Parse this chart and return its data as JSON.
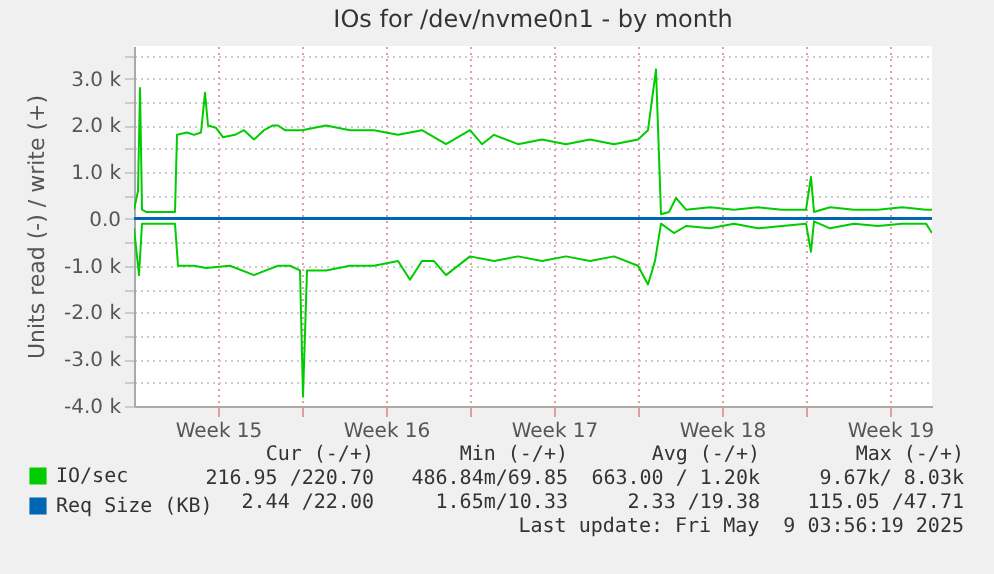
{
  "chart_data": {
    "type": "line",
    "title": "IOs for /dev/nvme0n1 - by month",
    "ylabel": "Units read (-) / write (+)",
    "xlim": [
      "2025-04-07T00:00",
      "2025-05-10T06:00"
    ],
    "xticks": [
      {
        "value": "2025-04-10T12:00",
        "label": "Week 15"
      },
      {
        "value": "2025-04-14T00:00",
        "label": null
      },
      {
        "value": "2025-04-17T12:00",
        "label": "Week 16"
      },
      {
        "value": "2025-04-21T00:00",
        "label": null
      },
      {
        "value": "2025-04-24T12:00",
        "label": "Week 17"
      },
      {
        "value": "2025-04-28T00:00",
        "label": null
      },
      {
        "value": "2025-05-01T12:00",
        "label": "Week 18"
      },
      {
        "value": "2025-05-05T00:00",
        "label": null
      },
      {
        "value": "2025-05-08T12:00",
        "label": "Week 19"
      }
    ],
    "ylim": [
      -4000,
      3700
    ],
    "yticks": [
      {
        "value": -4000,
        "label": "-4.0 k"
      },
      {
        "value": -3500,
        "label": null
      },
      {
        "value": -3000,
        "label": "-3.0 k"
      },
      {
        "value": -2500,
        "label": null
      },
      {
        "value": -2000,
        "label": "-2.0 k"
      },
      {
        "value": -1500,
        "label": null
      },
      {
        "value": -1000,
        "label": "-1.0 k"
      },
      {
        "value": -500,
        "label": null
      },
      {
        "value": 0,
        "label": "0.0"
      },
      {
        "value": 500,
        "label": null
      },
      {
        "value": 1000,
        "label": "1.0 k"
      },
      {
        "value": 1500,
        "label": null
      },
      {
        "value": 2000,
        "label": "2.0 k"
      },
      {
        "value": 2500,
        "label": null
      },
      {
        "value": 3000,
        "label": "3.0 k"
      },
      {
        "value": 3500,
        "label": null
      }
    ],
    "grid": true,
    "legend": "bottom left",
    "series": [
      {
        "name": "IO/sec",
        "color": "#00cc00",
        "x": [
          "2025-04-07T00:00",
          "2025-04-07T04:00",
          "2025-04-07T06:00",
          "2025-04-07T08:00",
          "2025-04-07T12:00",
          "2025-04-08T12:00",
          "2025-04-08T17:00",
          "2025-04-08T19:00",
          "2025-04-09T05:00",
          "2025-04-09T12:00",
          "2025-04-09T19:00",
          "2025-04-09T23:00",
          "2025-04-10T02:00",
          "2025-04-10T10:00",
          "2025-04-10T17:00",
          "2025-04-11T05:00",
          "2025-04-11T14:00",
          "2025-04-12T00:00",
          "2025-04-12T10:00",
          "2025-04-12T19:00",
          "2025-04-13T00:00",
          "2025-04-13T07:00",
          "2025-04-14T00:00",
          "2025-04-15T00:00",
          "2025-04-16T00:00",
          "2025-04-17T00:00",
          "2025-04-18T00:00",
          "2025-04-19T00:00",
          "2025-04-20T00:00",
          "2025-04-21T00:00",
          "2025-04-21T12:00",
          "2025-04-22T00:00",
          "2025-04-23T00:00",
          "2025-04-24T00:00",
          "2025-04-25T00:00",
          "2025-04-26T00:00",
          "2025-04-27T00:00",
          "2025-04-28T00:00",
          "2025-04-28T10:00",
          "2025-04-28T18:00",
          "2025-04-28T23:00",
          "2025-04-29T07:00",
          "2025-04-29T14:00",
          "2025-04-30T00:00",
          "2025-05-01T00:00",
          "2025-05-02T00:00",
          "2025-05-03T00:00",
          "2025-05-04T00:00",
          "2025-05-05T00:00",
          "2025-05-05T05:00",
          "2025-05-05T08:00",
          "2025-05-06T00:00",
          "2025-05-07T00:00",
          "2025-05-08T00:00",
          "2025-05-09T00:00",
          "2025-05-10T00:00",
          "2025-05-10T06:00"
        ],
        "values": [
          200,
          600,
          2800,
          200,
          150,
          150,
          150,
          1800,
          1850,
          1800,
          1850,
          2700,
          2000,
          1950,
          1750,
          1800,
          1900,
          1700,
          1900,
          2000,
          2000,
          1900,
          1900,
          2000,
          1900,
          1900,
          1800,
          1900,
          1600,
          1900,
          1600,
          1800,
          1600,
          1700,
          1600,
          1700,
          1600,
          1700,
          1900,
          3200,
          100,
          150,
          450,
          200,
          250,
          200,
          250,
          200,
          200,
          900,
          150,
          250,
          200,
          200,
          250,
          200,
          200
        ]
      },
      {
        "color": "#00cc00",
        "x": [
          "2025-04-07T00:00",
          "2025-04-07T05:00",
          "2025-04-07T08:00",
          "2025-04-08T17:00",
          "2025-04-08T20:00",
          "2025-04-09T12:00",
          "2025-04-10T00:00",
          "2025-04-11T00:00",
          "2025-04-12T00:00",
          "2025-04-12T12:00",
          "2025-04-13T00:00",
          "2025-04-13T12:00",
          "2025-04-13T22:00",
          "2025-04-14T01:00",
          "2025-04-14T05:00",
          "2025-04-15T00:00",
          "2025-04-16T00:00",
          "2025-04-17T00:00",
          "2025-04-18T00:00",
          "2025-04-18T12:00",
          "2025-04-19T00:00",
          "2025-04-19T12:00",
          "2025-04-20T00:00",
          "2025-04-21T00:00",
          "2025-04-22T00:00",
          "2025-04-23T00:00",
          "2025-04-24T00:00",
          "2025-04-25T00:00",
          "2025-04-26T00:00",
          "2025-04-27T00:00",
          "2025-04-28T00:00",
          "2025-04-28T10:00",
          "2025-04-28T17:00",
          "2025-04-28T23:00",
          "2025-04-29T12:00",
          "2025-04-30T00:00",
          "2025-05-01T00:00",
          "2025-05-02T00:00",
          "2025-05-03T00:00",
          "2025-05-04T00:00",
          "2025-05-05T00:00",
          "2025-05-05T05:00",
          "2025-05-05T08:00",
          "2025-05-06T00:00",
          "2025-05-07T00:00",
          "2025-05-08T00:00",
          "2025-05-09T00:00",
          "2025-05-10T00:00",
          "2025-05-10T06:00"
        ],
        "values": [
          -200,
          -1200,
          -100,
          -100,
          -1000,
          -1000,
          -1050,
          -1000,
          -1200,
          -1100,
          -1000,
          -1000,
          -1100,
          -3800,
          -1100,
          -1100,
          -1000,
          -1000,
          -900,
          -1300,
          -900,
          -900,
          -1200,
          -800,
          -900,
          -800,
          -900,
          -800,
          -900,
          -800,
          -1000,
          -1400,
          -900,
          -100,
          -300,
          -150,
          -200,
          -100,
          -200,
          -150,
          -100,
          -700,
          -50,
          -200,
          -100,
          -150,
          -100,
          -100,
          -300
        ]
      },
      {
        "name": "Req Size (KB)",
        "color": "#0066b3",
        "x": [
          "2025-04-07T00:00",
          "2025-05-10T06:00"
        ],
        "values": [
          20,
          20
        ]
      },
      {
        "color": "#0066b3",
        "x": [
          "2025-04-07T00:00",
          "2025-05-10T06:00"
        ],
        "values": [
          0,
          0
        ]
      }
    ],
    "annotations": [
      "Cur (-/+)",
      "Min (-/+)",
      "Avg (-/+)",
      "Max (-/+)",
      "216.95 /220.70",
      "486.84m/69.85",
      "663.00 / 1.20k",
      "9.67k/ 8.03k",
      "2.44 /22.00",
      "1.65m/10.33",
      "2.33 /19.38",
      "115.05 /47.71",
      "Last update: Fri May  9 03:56:19 2025"
    ]
  }
}
